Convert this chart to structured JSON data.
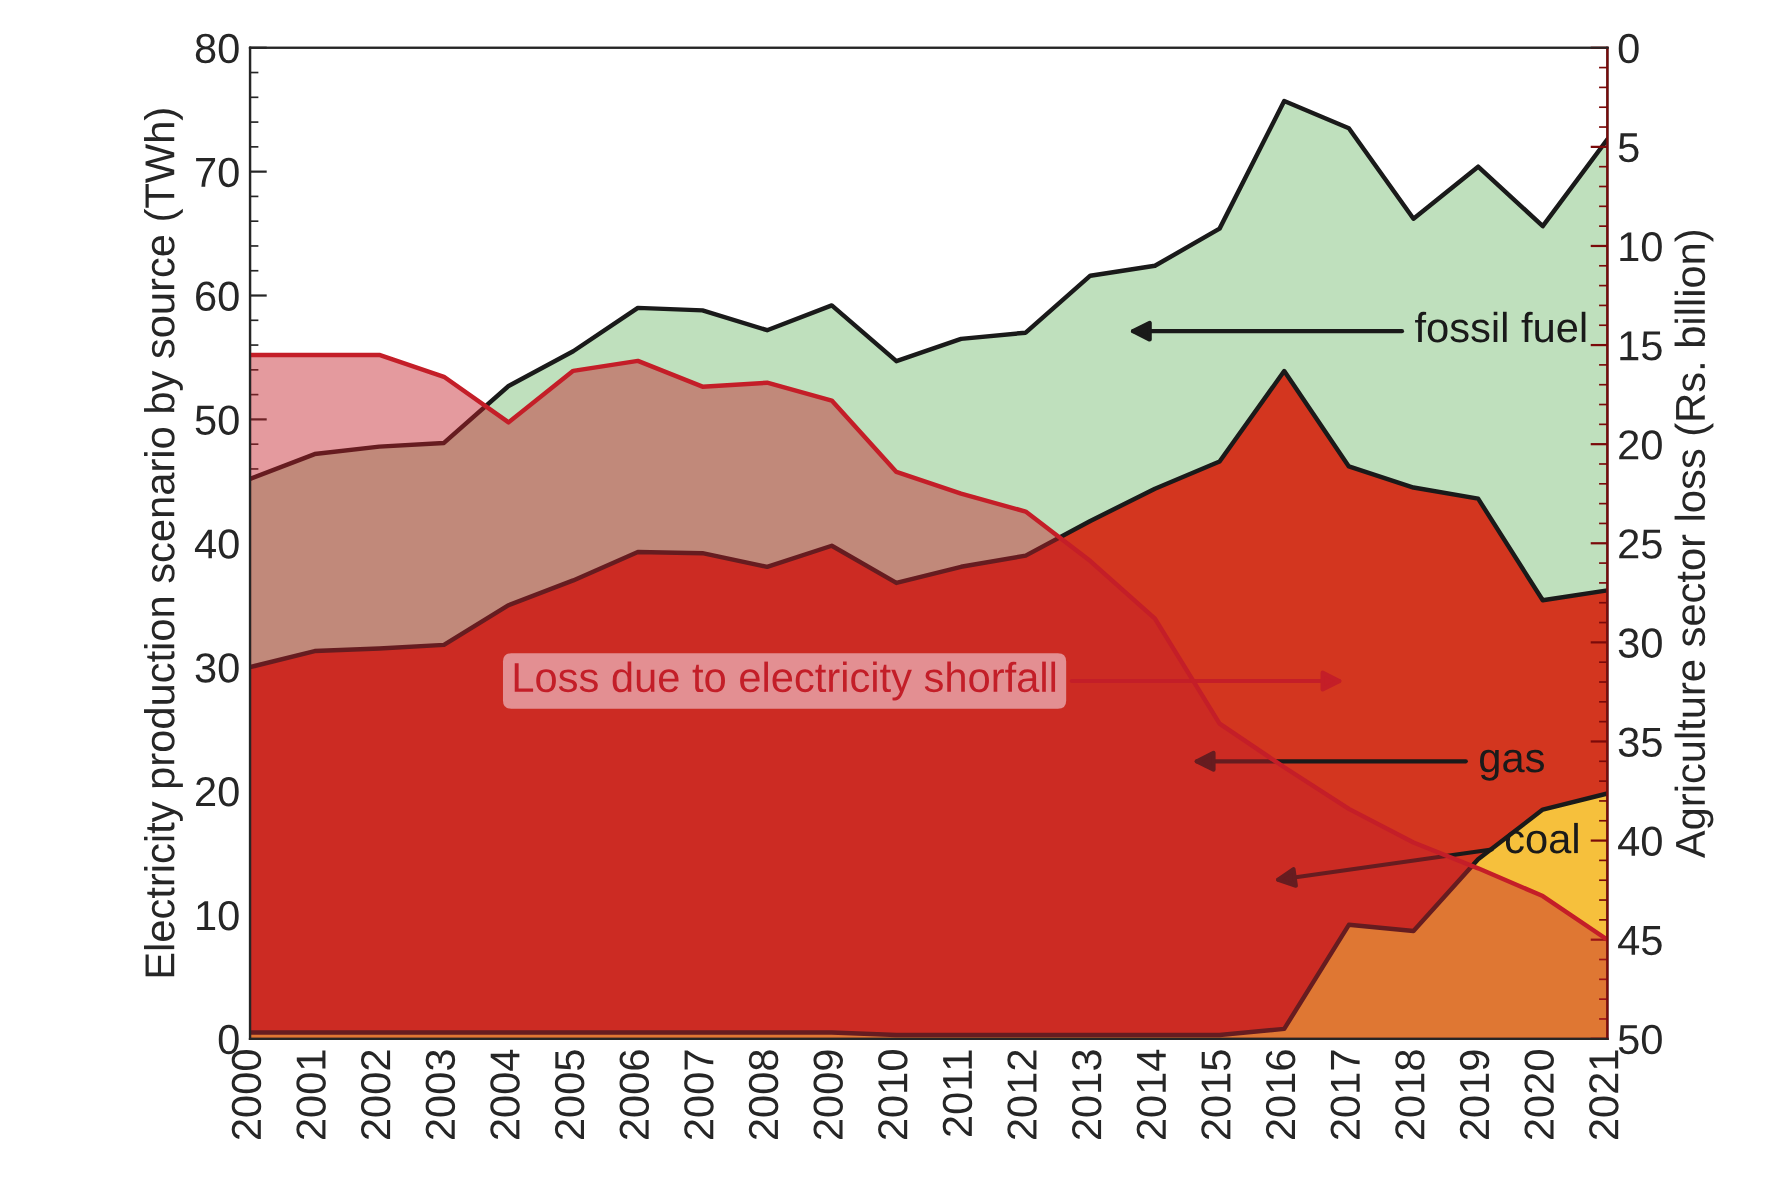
{
  "chart_data": {
    "type": "area",
    "ylabel": "Electricity production scenario by source (TWh)",
    "y2label": "Agriculture sector loss (Rs. billion)",
    "categories": [
      "2000",
      "2001",
      "2002",
      "2003",
      "2004",
      "2005",
      "2006",
      "2007",
      "2008",
      "2009",
      "2010",
      "2011",
      "2012",
      "2013",
      "2014",
      "2015",
      "2016",
      "2017",
      "2018",
      "2019",
      "2020",
      "2021"
    ],
    "series": [
      {
        "name": "fossil fuel",
        "color": "#bfe0bd",
        "values": [
          45.2,
          47.2,
          47.8,
          48.1,
          52.7,
          55.5,
          59,
          58.8,
          57.2,
          59.2,
          54.7,
          56.5,
          57,
          61.6,
          62.4,
          65.4,
          75.7,
          73.5,
          66.2,
          70.4,
          65.6,
          72.6
        ]
      },
      {
        "name": "gas",
        "color": "#d3361f",
        "values": [
          30,
          31.3,
          31.5,
          31.8,
          35,
          37,
          39.3,
          39.2,
          38.1,
          39.8,
          36.8,
          38.1,
          39,
          41.8,
          44.4,
          46.6,
          53.9,
          46.2,
          44.5,
          43.6,
          35.4,
          36.2
        ]
      },
      {
        "name": "coal",
        "color": "#f6c03c",
        "values": [
          0.5,
          0.5,
          0.5,
          0.5,
          0.5,
          0.5,
          0.5,
          0.5,
          0.5,
          0.5,
          0.3,
          0.3,
          0.3,
          0.3,
          0.3,
          0.3,
          0.8,
          9.2,
          8.7,
          14.5,
          18.5,
          19.8
        ]
      },
      {
        "name": "Loss due to electricity shorfall",
        "type": "line",
        "color": "#c41e28",
        "axis": "y2",
        "values": [
          15.5,
          15.5,
          15.5,
          16.6,
          18.9,
          16.3,
          15.8,
          17.1,
          16.9,
          17.8,
          21.4,
          22.5,
          23.4,
          25.9,
          28.8,
          34.1,
          36.3,
          38.4,
          40.1,
          41.4,
          42.8,
          45
        ],
        "lower": [
          15.5,
          15.5,
          15.5,
          16.6,
          18.9,
          16.3,
          15.8,
          17.1,
          16.9,
          17.8,
          21.4,
          22.5,
          23.4,
          25.9,
          28.8,
          34.1,
          36.3,
          38.4,
          40.1,
          41.4,
          42.8,
          45
        ],
        "upper": [
          50,
          50,
          50,
          50,
          50,
          50,
          50,
          50,
          50,
          50,
          50,
          50,
          50,
          50,
          50,
          50,
          50,
          50,
          50,
          50,
          50,
          50
        ]
      }
    ],
    "ylim": [
      0,
      80
    ],
    "yticks": [
      0,
      10,
      20,
      30,
      40,
      50,
      60,
      70,
      80
    ],
    "y2lim": [
      50,
      0
    ],
    "y2ticks": [
      0,
      5,
      10,
      15,
      20,
      25,
      30,
      35,
      40,
      45,
      50
    ],
    "grid": false,
    "legend": false
  }
}
